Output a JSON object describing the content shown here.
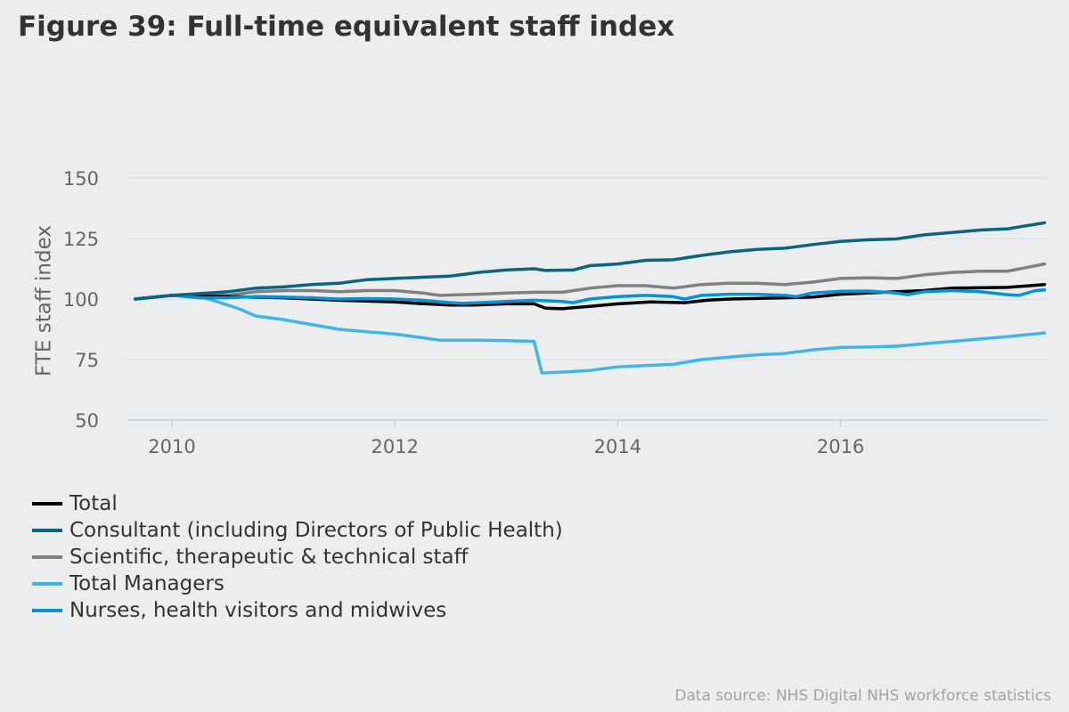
{
  "title": "Figure 39: Full-time equivalent staff index",
  "source": "Data source: NHS Digital NHS workforce statistics",
  "chart_data": {
    "type": "line",
    "title": "Figure 39: Full-time equivalent staff index",
    "xlabel": "",
    "ylabel": "FTE staff index",
    "xlim": [
      2009.6,
      2017.85
    ],
    "ylim": [
      50,
      150
    ],
    "yticks": [
      50,
      75,
      100,
      125,
      150
    ],
    "xticks": [
      2010,
      2012,
      2014,
      2016
    ],
    "grid": true,
    "legend_position": "bottom-left",
    "series": [
      {
        "name": "Total",
        "color": "#000000",
        "points": [
          [
            2009.67,
            100
          ],
          [
            2010.0,
            101.5
          ],
          [
            2010.5,
            101
          ],
          [
            2011.0,
            100.5
          ],
          [
            2011.5,
            99.5
          ],
          [
            2012.0,
            98.8
          ],
          [
            2012.2,
            98.2
          ],
          [
            2012.5,
            97.5
          ],
          [
            2012.7,
            97.5
          ],
          [
            2013.0,
            98
          ],
          [
            2013.25,
            98
          ],
          [
            2013.35,
            96.2
          ],
          [
            2013.5,
            96
          ],
          [
            2013.75,
            97
          ],
          [
            2014.0,
            98
          ],
          [
            2014.3,
            98.8
          ],
          [
            2014.6,
            98.5
          ],
          [
            2014.8,
            99.5
          ],
          [
            2015.0,
            100
          ],
          [
            2015.5,
            100.5
          ],
          [
            2015.75,
            100.8
          ],
          [
            2016.0,
            102
          ],
          [
            2016.5,
            103
          ],
          [
            2016.75,
            103.5
          ],
          [
            2017.0,
            104.5
          ],
          [
            2017.5,
            104.8
          ],
          [
            2017.83,
            106
          ]
        ]
      },
      {
        "name": "Consultant (including Directors of Public Health)",
        "color": "#0b6480",
        "points": [
          [
            2009.67,
            100
          ],
          [
            2010.0,
            101.5
          ],
          [
            2010.5,
            103
          ],
          [
            2010.75,
            104.5
          ],
          [
            2011.0,
            105
          ],
          [
            2011.25,
            106
          ],
          [
            2011.5,
            106.5
          ],
          [
            2011.75,
            108
          ],
          [
            2012.0,
            108.5
          ],
          [
            2012.25,
            109
          ],
          [
            2012.5,
            109.5
          ],
          [
            2012.75,
            111
          ],
          [
            2013.0,
            112
          ],
          [
            2013.25,
            112.5
          ],
          [
            2013.35,
            111.8
          ],
          [
            2013.6,
            112
          ],
          [
            2013.75,
            113.8
          ],
          [
            2014.0,
            114.5
          ],
          [
            2014.25,
            116
          ],
          [
            2014.5,
            116.2
          ],
          [
            2014.75,
            118
          ],
          [
            2015.0,
            119.5
          ],
          [
            2015.25,
            120.5
          ],
          [
            2015.5,
            121
          ],
          [
            2015.75,
            122.5
          ],
          [
            2016.0,
            123.8
          ],
          [
            2016.25,
            124.5
          ],
          [
            2016.5,
            124.8
          ],
          [
            2016.75,
            126.5
          ],
          [
            2017.0,
            127.5
          ],
          [
            2017.25,
            128.5
          ],
          [
            2017.5,
            129
          ],
          [
            2017.83,
            131.5
          ]
        ]
      },
      {
        "name": "Scientific, therapeutic & technical staff",
        "color": "#808080",
        "points": [
          [
            2009.67,
            100
          ],
          [
            2010.0,
            101.5
          ],
          [
            2010.25,
            101.5
          ],
          [
            2010.5,
            101.5
          ],
          [
            2010.75,
            103
          ],
          [
            2011.0,
            103.5
          ],
          [
            2011.25,
            103.5
          ],
          [
            2011.5,
            103
          ],
          [
            2011.75,
            103.5
          ],
          [
            2012.0,
            103.5
          ],
          [
            2012.25,
            102.5
          ],
          [
            2012.4,
            101.5
          ],
          [
            2012.6,
            101.8
          ],
          [
            2012.75,
            102
          ],
          [
            2013.0,
            102.5
          ],
          [
            2013.25,
            102.8
          ],
          [
            2013.5,
            102.8
          ],
          [
            2013.75,
            104.5
          ],
          [
            2014.0,
            105.5
          ],
          [
            2014.25,
            105.5
          ],
          [
            2014.5,
            104.5
          ],
          [
            2014.75,
            106
          ],
          [
            2015.0,
            106.5
          ],
          [
            2015.25,
            106.5
          ],
          [
            2015.5,
            106
          ],
          [
            2015.75,
            107
          ],
          [
            2016.0,
            108.5
          ],
          [
            2016.25,
            108.8
          ],
          [
            2016.5,
            108.5
          ],
          [
            2016.75,
            110
          ],
          [
            2017.0,
            111
          ],
          [
            2017.25,
            111.5
          ],
          [
            2017.5,
            111.5
          ],
          [
            2017.83,
            114.5
          ]
        ]
      },
      {
        "name": "Total Managers",
        "color": "#41b6e6",
        "points": [
          [
            2009.67,
            100
          ],
          [
            2010.0,
            101.5
          ],
          [
            2010.25,
            101
          ],
          [
            2010.4,
            99
          ],
          [
            2010.6,
            96
          ],
          [
            2010.75,
            93
          ],
          [
            2011.0,
            91.5
          ],
          [
            2011.25,
            89.5
          ],
          [
            2011.5,
            87.5
          ],
          [
            2011.75,
            86.5
          ],
          [
            2012.0,
            85.5
          ],
          [
            2012.25,
            84
          ],
          [
            2012.4,
            83
          ],
          [
            2012.75,
            83
          ],
          [
            2013.0,
            82.8
          ],
          [
            2013.25,
            82.5
          ],
          [
            2013.32,
            69.5
          ],
          [
            2013.5,
            69.8
          ],
          [
            2013.75,
            70.5
          ],
          [
            2014.0,
            72
          ],
          [
            2014.25,
            72.5
          ],
          [
            2014.5,
            73
          ],
          [
            2014.75,
            75
          ],
          [
            2015.0,
            76
          ],
          [
            2015.25,
            77
          ],
          [
            2015.5,
            77.5
          ],
          [
            2015.75,
            79
          ],
          [
            2016.0,
            80
          ],
          [
            2016.25,
            80.2
          ],
          [
            2016.5,
            80.5
          ],
          [
            2016.75,
            81.5
          ],
          [
            2017.0,
            82.5
          ],
          [
            2017.25,
            83.5
          ],
          [
            2017.5,
            84.5
          ],
          [
            2017.83,
            86
          ]
        ]
      },
      {
        "name": "Nurses, health visitors and midwives",
        "color": "#0095d5",
        "points": [
          [
            2009.67,
            100
          ],
          [
            2010.0,
            101.5
          ],
          [
            2010.25,
            100.5
          ],
          [
            2010.5,
            100.5
          ],
          [
            2010.75,
            101
          ],
          [
            2011.0,
            100.8
          ],
          [
            2011.25,
            100.5
          ],
          [
            2011.5,
            100
          ],
          [
            2011.75,
            100.2
          ],
          [
            2012.0,
            100
          ],
          [
            2012.25,
            99.5
          ],
          [
            2012.5,
            98.5
          ],
          [
            2012.6,
            98.2
          ],
          [
            2012.75,
            98.5
          ],
          [
            2013.0,
            99
          ],
          [
            2013.25,
            99.5
          ],
          [
            2013.5,
            99
          ],
          [
            2013.6,
            98.5
          ],
          [
            2013.75,
            100
          ],
          [
            2014.0,
            101
          ],
          [
            2014.25,
            101.5
          ],
          [
            2014.5,
            101
          ],
          [
            2014.6,
            100
          ],
          [
            2014.75,
            101.5
          ],
          [
            2015.0,
            102
          ],
          [
            2015.25,
            102
          ],
          [
            2015.5,
            101.5
          ],
          [
            2015.6,
            101
          ],
          [
            2015.75,
            102.5
          ],
          [
            2016.0,
            103.2
          ],
          [
            2016.25,
            103.3
          ],
          [
            2016.5,
            102.5
          ],
          [
            2016.6,
            101.8
          ],
          [
            2016.75,
            103
          ],
          [
            2017.0,
            103.5
          ],
          [
            2017.25,
            103
          ],
          [
            2017.5,
            101.8
          ],
          [
            2017.6,
            101.5
          ],
          [
            2017.75,
            103.5
          ],
          [
            2017.83,
            103.8
          ]
        ]
      }
    ]
  }
}
